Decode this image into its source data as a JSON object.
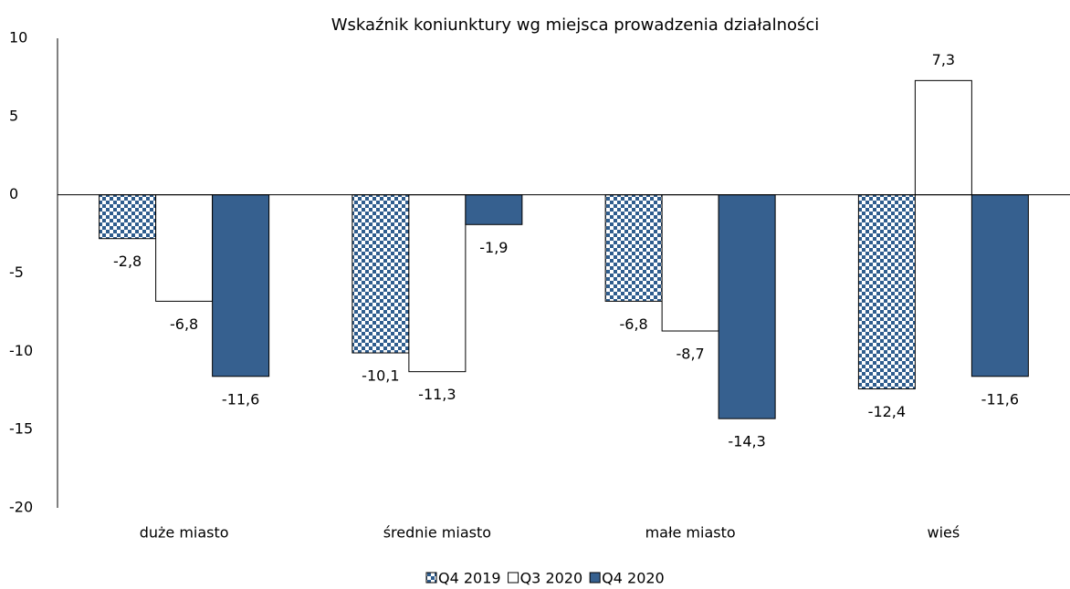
{
  "chart_data": {
    "type": "bar",
    "title": "Wskaźnik koniunktury wg miejsca prowadzenia działalności",
    "categories": [
      "duże miasto",
      "średnie miasto",
      "małe miasto",
      "wieś"
    ],
    "series": [
      {
        "name": "Q4 2019",
        "color": "#2f5d8e",
        "pattern": "checker",
        "values": [
          -2.8,
          -10.1,
          -6.8,
          -12.4
        ],
        "value_labels": [
          "-2,8",
          "-10,1",
          "-6,8",
          "-12,4"
        ]
      },
      {
        "name": "Q3 2020",
        "color": "#ffffff",
        "values": [
          -6.8,
          -11.3,
          -8.7,
          7.3
        ],
        "value_labels": [
          "-6,8",
          "-11,3",
          "-8,7",
          "7,3"
        ]
      },
      {
        "name": "Q4 2020",
        "color": "#36608f",
        "values": [
          -11.6,
          -1.9,
          -14.3,
          -11.6
        ],
        "value_labels": [
          "-11,6",
          "-1,9",
          "-14,3",
          "-11,6"
        ]
      }
    ],
    "ylim": [
      -20,
      10
    ],
    "yticks": [
      10,
      5,
      0,
      -5,
      -10,
      -15,
      -20
    ],
    "grid": false,
    "legend": "bottom"
  }
}
